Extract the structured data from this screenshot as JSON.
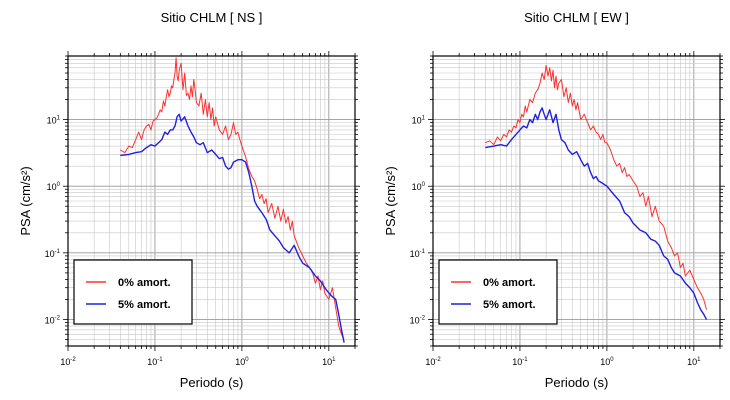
{
  "chart_data": [
    {
      "type": "line",
      "title": "Sitio CHLM [ NS ]",
      "xlabel": "Periodo (s)",
      "ylabel": "PSA (cm/s²)",
      "x_scale": "log",
      "y_scale": "log",
      "xlim": [
        0.01,
        20
      ],
      "ylim": [
        0.004,
        90
      ],
      "x_ticks": [
        {
          "v": 0.01,
          "b": "10",
          "e": "-2"
        },
        {
          "v": 0.1,
          "b": "10",
          "e": "-1"
        },
        {
          "v": 1,
          "b": "10",
          "e": "0"
        },
        {
          "v": 10,
          "b": "10",
          "e": "1"
        }
      ],
      "y_ticks": [
        {
          "v": 0.01,
          "b": "10",
          "e": "-2"
        },
        {
          "v": 0.1,
          "b": "10",
          "e": "-1"
        },
        {
          "v": 1,
          "b": "10",
          "e": "0"
        },
        {
          "v": 10,
          "b": "10",
          "e": "1"
        }
      ],
      "grid": true,
      "legend_position": "bottom-left",
      "series": [
        {
          "name": "0% amort.",
          "color": "#ff3030",
          "x": [
            0.04,
            0.045,
            0.05,
            0.055,
            0.06,
            0.065,
            0.07,
            0.075,
            0.08,
            0.085,
            0.09,
            0.095,
            0.1,
            0.105,
            0.11,
            0.115,
            0.12,
            0.125,
            0.13,
            0.135,
            0.14,
            0.145,
            0.15,
            0.155,
            0.16,
            0.165,
            0.17,
            0.175,
            0.18,
            0.185,
            0.19,
            0.2,
            0.21,
            0.22,
            0.23,
            0.24,
            0.25,
            0.26,
            0.27,
            0.28,
            0.29,
            0.3,
            0.32,
            0.34,
            0.36,
            0.38,
            0.4,
            0.42,
            0.44,
            0.46,
            0.48,
            0.5,
            0.55,
            0.6,
            0.65,
            0.7,
            0.75,
            0.8,
            0.85,
            0.9,
            0.95,
            1.0,
            1.1,
            1.2,
            1.3,
            1.4,
            1.5,
            1.6,
            1.7,
            1.8,
            1.9,
            2.0,
            2.2,
            2.4,
            2.6,
            2.8,
            3.0,
            3.2,
            3.4,
            3.6,
            3.8,
            4.0,
            4.5,
            5.0,
            5.5,
            6.0,
            6.5,
            7.0,
            7.5,
            8.0,
            8.5,
            9.0,
            10.0,
            11.0,
            12.0,
            13.0,
            14.0,
            15.0
          ],
          "y": [
            3.5,
            3.2,
            4.0,
            3.8,
            5.0,
            6.5,
            5.0,
            7.0,
            8.0,
            8.5,
            7.0,
            9.5,
            10.0,
            10.5,
            12.0,
            14.0,
            13.0,
            19.0,
            16.0,
            22.0,
            28.0,
            22.0,
            25.0,
            32.0,
            30.0,
            40.0,
            50.0,
            85.0,
            45.0,
            38.0,
            55.0,
            70.0,
            28.0,
            50.0,
            23.0,
            25.0,
            20.0,
            32.0,
            22.0,
            40.0,
            28.0,
            18.0,
            16.0,
            25.0,
            12.0,
            20.0,
            11.0,
            18.0,
            10.0,
            15.0,
            8.0,
            11.0,
            7.0,
            6.0,
            8.0,
            5.0,
            6.0,
            9.0,
            6.0,
            6.5,
            5.0,
            4.0,
            2.8,
            1.8,
            1.4,
            1.2,
            0.9,
            0.65,
            0.75,
            0.55,
            0.65,
            0.4,
            0.55,
            0.33,
            0.5,
            0.3,
            0.45,
            0.28,
            0.35,
            0.22,
            0.3,
            0.18,
            0.12,
            0.09,
            0.07,
            0.06,
            0.05,
            0.035,
            0.045,
            0.028,
            0.038,
            0.025,
            0.02,
            0.03,
            0.015,
            0.008,
            0.006,
            0.005
          ]
        },
        {
          "name": "5% amort.",
          "color": "#2020e0",
          "x": [
            0.04,
            0.05,
            0.06,
            0.07,
            0.08,
            0.09,
            0.1,
            0.11,
            0.12,
            0.13,
            0.14,
            0.15,
            0.16,
            0.17,
            0.18,
            0.19,
            0.2,
            0.22,
            0.24,
            0.26,
            0.28,
            0.3,
            0.33,
            0.36,
            0.4,
            0.45,
            0.5,
            0.55,
            0.6,
            0.65,
            0.7,
            0.75,
            0.8,
            0.9,
            1.0,
            1.1,
            1.2,
            1.3,
            1.4,
            1.5,
            1.7,
            1.9,
            2.1,
            2.4,
            2.7,
            3.0,
            3.5,
            4.0,
            4.5,
            5.0,
            6.0,
            7.0,
            8.0,
            9.0,
            10.0,
            11.0,
            12.0,
            13.0,
            14.0,
            15.0
          ],
          "y": [
            2.9,
            3.0,
            3.2,
            3.3,
            3.8,
            4.2,
            4.0,
            4.5,
            5.0,
            6.5,
            6.0,
            7.0,
            7.0,
            8.0,
            11.0,
            12.0,
            9.5,
            11.0,
            8.0,
            6.5,
            5.5,
            4.5,
            4.2,
            4.5,
            3.2,
            3.5,
            3.0,
            2.6,
            2.7,
            2.0,
            1.8,
            1.9,
            2.3,
            2.5,
            2.5,
            2.3,
            1.6,
            1.0,
            0.6,
            0.5,
            0.4,
            0.32,
            0.22,
            0.18,
            0.15,
            0.12,
            0.1,
            0.13,
            0.09,
            0.07,
            0.06,
            0.045,
            0.038,
            0.03,
            0.025,
            0.022,
            0.02,
            0.012,
            0.007,
            0.0045
          ]
        }
      ]
    },
    {
      "type": "line",
      "title": "Sitio CHLM [ EW ]",
      "xlabel": "Periodo (s)",
      "ylabel": "PSA (cm/s²)",
      "x_scale": "log",
      "y_scale": "log",
      "xlim": [
        0.01,
        20
      ],
      "ylim": [
        0.004,
        90
      ],
      "x_ticks": [
        {
          "v": 0.01,
          "b": "10",
          "e": "-2"
        },
        {
          "v": 0.1,
          "b": "10",
          "e": "-1"
        },
        {
          "v": 1,
          "b": "10",
          "e": "0"
        },
        {
          "v": 10,
          "b": "10",
          "e": "1"
        }
      ],
      "y_ticks": [
        {
          "v": 0.01,
          "b": "10",
          "e": "-2"
        },
        {
          "v": 0.1,
          "b": "10",
          "e": "-1"
        },
        {
          "v": 1,
          "b": "10",
          "e": "0"
        },
        {
          "v": 10,
          "b": "10",
          "e": "1"
        }
      ],
      "grid": true,
      "legend_position": "bottom-left",
      "series": [
        {
          "name": "0% amort.",
          "color": "#ff3030",
          "x": [
            0.04,
            0.045,
            0.05,
            0.055,
            0.06,
            0.065,
            0.07,
            0.075,
            0.08,
            0.085,
            0.09,
            0.095,
            0.1,
            0.105,
            0.11,
            0.115,
            0.12,
            0.13,
            0.14,
            0.15,
            0.16,
            0.17,
            0.18,
            0.19,
            0.2,
            0.21,
            0.22,
            0.23,
            0.24,
            0.25,
            0.26,
            0.27,
            0.28,
            0.3,
            0.32,
            0.34,
            0.36,
            0.38,
            0.4,
            0.42,
            0.44,
            0.46,
            0.5,
            0.55,
            0.6,
            0.65,
            0.7,
            0.75,
            0.8,
            0.85,
            0.9,
            0.95,
            1.0,
            1.1,
            1.2,
            1.3,
            1.4,
            1.5,
            1.6,
            1.7,
            1.8,
            2.0,
            2.2,
            2.4,
            2.6,
            2.8,
            3.0,
            3.3,
            3.6,
            4.0,
            4.5,
            5.0,
            5.5,
            6.0,
            6.5,
            7.0,
            7.5,
            8.0,
            9.0,
            10.0,
            11.0,
            12.0,
            13.0,
            14.0
          ],
          "y": [
            4.5,
            4.8,
            4.2,
            5.5,
            4.8,
            6.0,
            5.5,
            7.0,
            6.5,
            8.0,
            7.5,
            10.0,
            9.0,
            12.0,
            11.0,
            16.0,
            13.0,
            20.0,
            18.0,
            25.0,
            28.0,
            35.0,
            50.0,
            40.0,
            65.0,
            45.0,
            60.0,
            38.0,
            55.0,
            30.0,
            45.0,
            28.0,
            35.0,
            40.0,
            22.0,
            30.0,
            18.0,
            25.0,
            16.0,
            20.0,
            14.0,
            18.0,
            10.0,
            12.0,
            9.0,
            7.0,
            8.0,
            6.5,
            6.0,
            5.0,
            6.0,
            4.5,
            4.5,
            3.5,
            2.5,
            2.0,
            2.2,
            1.6,
            1.9,
            1.4,
            1.5,
            1.2,
            1.0,
            0.7,
            0.8,
            0.5,
            0.7,
            0.35,
            0.5,
            0.3,
            0.25,
            0.15,
            0.12,
            0.09,
            0.1,
            0.06,
            0.07,
            0.045,
            0.055,
            0.04,
            0.03,
            0.025,
            0.02,
            0.014
          ]
        },
        {
          "name": "5% amort.",
          "color": "#2020e0",
          "x": [
            0.04,
            0.05,
            0.06,
            0.07,
            0.08,
            0.09,
            0.1,
            0.11,
            0.12,
            0.13,
            0.14,
            0.15,
            0.16,
            0.17,
            0.18,
            0.19,
            0.2,
            0.22,
            0.24,
            0.26,
            0.28,
            0.3,
            0.33,
            0.36,
            0.4,
            0.45,
            0.5,
            0.55,
            0.6,
            0.65,
            0.7,
            0.75,
            0.8,
            0.9,
            1.0,
            1.2,
            1.4,
            1.6,
            1.8,
            2.0,
            2.4,
            2.8,
            3.2,
            3.6,
            4.0,
            4.5,
            5.0,
            5.5,
            6.0,
            7.0,
            8.0,
            9.0,
            10.0,
            11.0,
            12.0,
            13.0,
            14.0
          ],
          "y": [
            3.8,
            4.0,
            4.2,
            4.0,
            5.0,
            6.0,
            7.0,
            8.0,
            7.5,
            10.0,
            9.0,
            12.0,
            10.0,
            13.0,
            15.0,
            12.0,
            10.0,
            14.0,
            9.0,
            12.0,
            7.0,
            5.0,
            4.5,
            3.5,
            3.0,
            3.3,
            2.5,
            2.0,
            2.2,
            1.6,
            1.3,
            1.4,
            1.2,
            1.1,
            1.0,
            0.75,
            0.6,
            0.4,
            0.35,
            0.28,
            0.22,
            0.2,
            0.16,
            0.15,
            0.13,
            0.09,
            0.08,
            0.06,
            0.05,
            0.045,
            0.035,
            0.03,
            0.025,
            0.018,
            0.014,
            0.012,
            0.01
          ]
        }
      ]
    }
  ]
}
